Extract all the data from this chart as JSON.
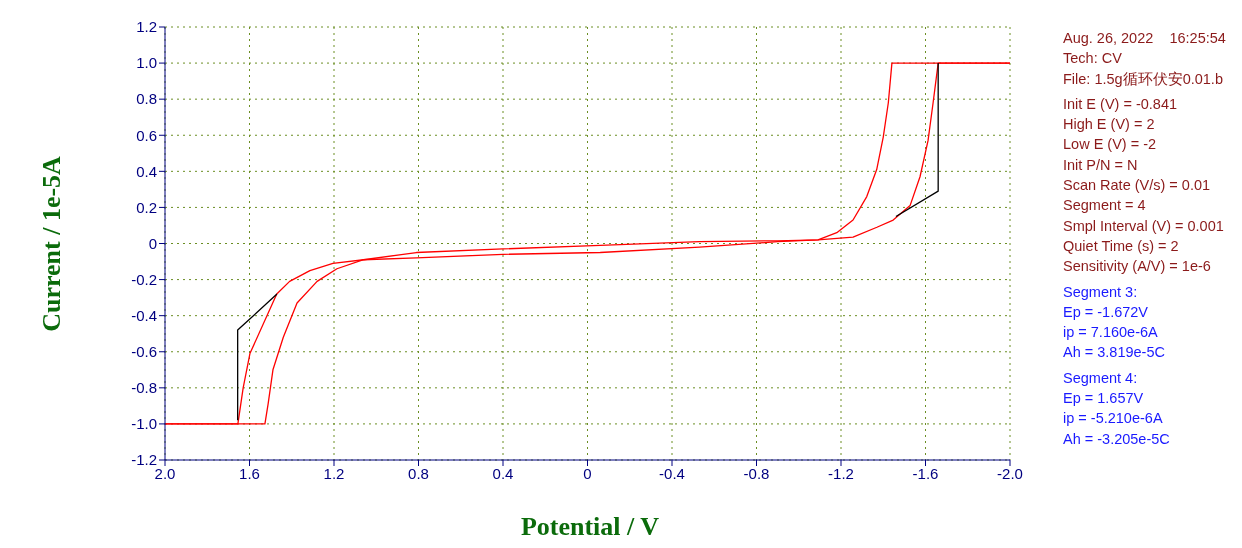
{
  "chart_data": {
    "type": "line",
    "xlabel": "Potential / V",
    "ylabel": "Current / 1e-5A",
    "xlim": [
      2,
      -2
    ],
    "ylim": [
      -1.2,
      1.2
    ],
    "xticks": [
      {
        "value": 2,
        "label": "2.0"
      },
      1.6,
      1.2,
      0.8,
      0.4,
      0,
      -0.4,
      -0.8,
      -1.2,
      -1.6,
      {
        "value": -2,
        "label": "-2.0"
      }
    ],
    "yticks": [
      1.2,
      {
        "value": 1,
        "label": "1.0"
      },
      0.8,
      0.6,
      0.4,
      0.2,
      0,
      -0.2,
      -0.4,
      -0.6,
      -0.8,
      {
        "value": -1,
        "label": "-1.0"
      },
      -1.2
    ],
    "grid": true,
    "marker": "none",
    "line_style": "solid",
    "series": [
      {
        "color": "#ff0000",
        "x": [
          -2,
          -1.441,
          -1.424,
          -1.4,
          -1.369,
          -1.322,
          -1.257,
          -1.18,
          -1.091,
          -0.9,
          -0.53,
          -0.06,
          0.4,
          0.81,
          1.06,
          1.205,
          1.314,
          1.41,
          1.471,
          1.598,
          1.63,
          1.655,
          2
        ],
        "values": [
          1.0,
          1.0,
          0.78,
          0.59,
          0.41,
          0.26,
          0.13,
          0.06,
          0.02,
          0.01,
          -0.02,
          -0.05,
          -0.06,
          -0.08,
          -0.09,
          -0.11,
          -0.15,
          -0.21,
          -0.28,
          -0.61,
          -0.8,
          -1.0,
          -1.0
        ]
      },
      {
        "color": "#ff0000",
        "x": [
          2,
          1.527,
          1.512,
          1.489,
          1.44,
          1.375,
          1.28,
          1.186,
          1.06,
          0.81,
          0.4,
          -0.06,
          -0.53,
          -0.9,
          -1.091,
          -1.257,
          -1.37,
          -1.447,
          -1.527,
          -1.574,
          -1.612,
          -1.636,
          -1.66,
          -2
        ],
        "values": [
          -1.0,
          -1.0,
          -0.89,
          -0.7,
          -0.52,
          -0.33,
          -0.21,
          -0.14,
          -0.09,
          -0.05,
          -0.03,
          -0.01,
          0.01,
          0.015,
          0.02,
          0.035,
          0.09,
          0.13,
          0.21,
          0.37,
          0.57,
          0.78,
          1.0,
          1.0
        ]
      },
      {
        "color": "#000000",
        "x": [
          -1.66,
          -1.66,
          -1.46
        ],
        "values": [
          1.0,
          0.29,
          0.15
        ]
      },
      {
        "color": "#000000",
        "x": [
          1.656,
          1.656,
          1.47
        ],
        "values": [
          -0.98,
          -0.48,
          -0.28
        ]
      }
    ],
    "annotations": [
      "Aug. 26, 2022    16:25:54",
      "Tech: CV",
      "File: 1.5g循环伏安0.01.b",
      "Init E (V) = -0.841",
      "High E (V) = 2",
      "Low E (V) = -2",
      "Init P/N = N",
      "Scan Rate (V/s) = 0.01",
      "Segment = 4",
      "Smpl Interval (V) = 0.001",
      "Quiet Time (s) = 2",
      "Sensitivity (A/V) = 1e-6",
      "Segment 3:",
      "Ep = -1.672V",
      "ip = 7.160e-6A",
      "Ah = 3.819e-5C",
      "Segment 4:",
      "Ep = 1.657V",
      "ip = -5.210e-6A",
      "Ah = -3.205e-5C"
    ]
  }
}
